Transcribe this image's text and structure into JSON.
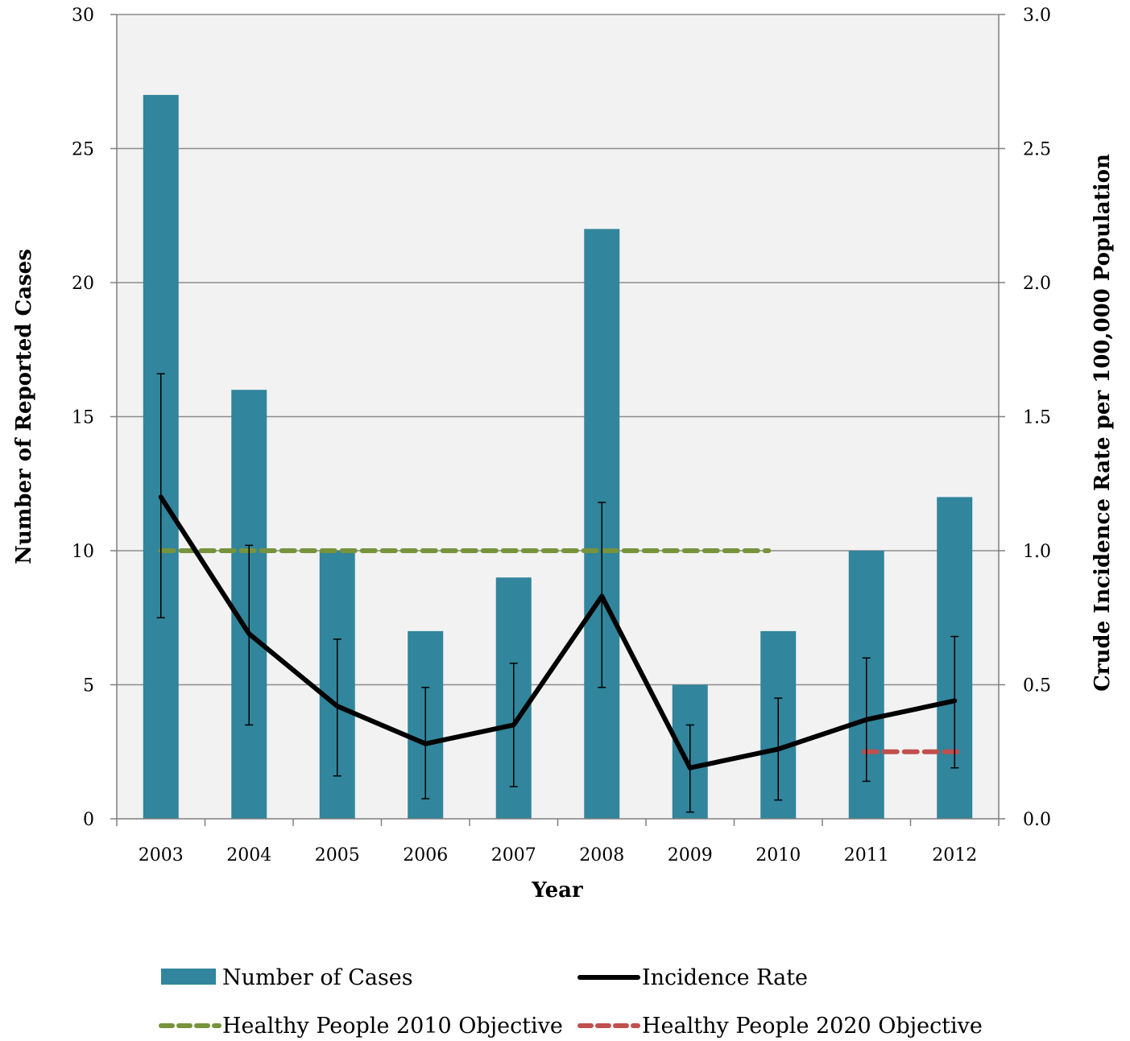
{
  "chart_data": {
    "type": "bar",
    "categories": [
      "2003",
      "2004",
      "2005",
      "2006",
      "2007",
      "2008",
      "2009",
      "2010",
      "2011",
      "2012"
    ],
    "xlabel": "Year",
    "ylabel": "Number of Reported Cases",
    "ylabel_right": "Crude Incidence Rate per 100,000 Population",
    "ylim": [
      0,
      30
    ],
    "ylim_right": [
      0,
      3.0
    ],
    "yticks": [
      "0",
      "5",
      "10",
      "15",
      "20",
      "25",
      "30"
    ],
    "yticks_right": [
      "0.0",
      "0.5",
      "1.0",
      "1.5",
      "2.0",
      "2.5",
      "3.0"
    ],
    "grid": true,
    "legend_position": "bottom",
    "series": [
      {
        "name": "Number of Cases",
        "type": "bar",
        "axis": "left",
        "color": "#31859c",
        "values": [
          27,
          16,
          10,
          7,
          9,
          22,
          5,
          7,
          10,
          12
        ]
      },
      {
        "name": "Incidence Rate",
        "type": "line",
        "axis": "right",
        "color": "#000000",
        "values": [
          1.2,
          0.69,
          0.42,
          0.28,
          0.35,
          0.83,
          0.19,
          0.26,
          0.37,
          0.44
        ],
        "error_low": [
          0.75,
          0.35,
          0.16,
          0.075,
          0.12,
          0.49,
          0.025,
          0.07,
          0.14,
          0.19
        ],
        "error_high": [
          1.66,
          1.02,
          0.67,
          0.49,
          0.58,
          1.18,
          0.35,
          0.45,
          0.6,
          0.68
        ]
      },
      {
        "name": "Healthy People 2010 Objective",
        "type": "line",
        "style": "dashed",
        "axis": "right",
        "color": "#77933c",
        "x": [
          "2003",
          "2010"
        ],
        "values": [
          1.0,
          1.0
        ]
      },
      {
        "name": "Healthy People 2020 Objective",
        "type": "line",
        "style": "dashed",
        "axis": "right",
        "color": "#c0504d",
        "x": [
          "2011",
          "2012"
        ],
        "values": [
          0.25,
          0.25
        ]
      }
    ]
  }
}
